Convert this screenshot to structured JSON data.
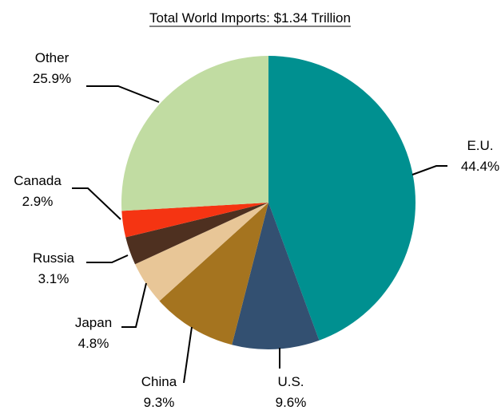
{
  "chart_data": {
    "type": "pie",
    "title": "Total World Imports: $1.34 Trillion",
    "slices": [
      {
        "label": "E.U.",
        "value_label": "44.4%",
        "value": 44.4,
        "color": "#009090"
      },
      {
        "label": "U.S.",
        "value_label": "9.6%",
        "value": 9.6,
        "color": "#335071"
      },
      {
        "label": "China",
        "value_label": "9.3%",
        "value": 9.3,
        "color": "#A5741F"
      },
      {
        "label": "Japan",
        "value_label": "4.8%",
        "value": 4.8,
        "color": "#E8C697"
      },
      {
        "label": "Russia",
        "value_label": "3.1%",
        "value": 3.1,
        "color": "#4E3020"
      },
      {
        "label": "Canada",
        "value_label": "2.9%",
        "value": 2.9,
        "color": "#F53412"
      },
      {
        "label": "Other",
        "value_label": "25.9%",
        "value": 25.9,
        "color": "#C1DCA2"
      }
    ],
    "start": "12 o'clock",
    "direction": "clockwise",
    "legend": "none"
  }
}
